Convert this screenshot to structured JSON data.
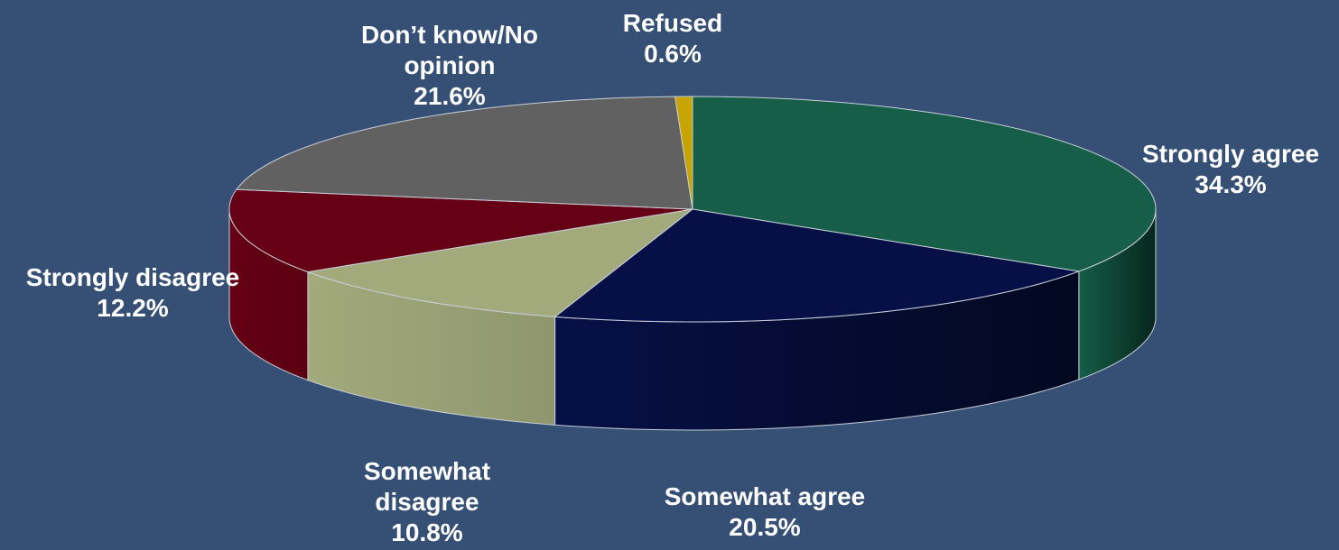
{
  "colors": {
    "background": "#354f75"
  },
  "chart_data": {
    "type": "pie",
    "style": "3d",
    "title": "",
    "slices": [
      {
        "label": "Strongly agree",
        "value": 34.3,
        "value_label": "34.3%",
        "label_lines": [
          "Strongly agree",
          "34.3%"
        ],
        "color": "#165e47",
        "side_color": "#06261c"
      },
      {
        "label": "Somewhat agree",
        "value": 20.5,
        "value_label": "20.5%",
        "label_lines": [
          "Somewhat agree",
          "20.5%"
        ],
        "color": "#061046",
        "side_color": "#030820"
      },
      {
        "label": "Somewhat disagree",
        "value": 10.8,
        "value_label": "10.8%",
        "label_lines": [
          "Somewhat",
          "disagree",
          "10.8%"
        ],
        "color": "#a2aa7c",
        "side_color": "#8f966d"
      },
      {
        "label": "Strongly disagree",
        "value": 12.2,
        "value_label": "12.2%",
        "label_lines": [
          "Strongly disagree",
          "12.2%"
        ],
        "color": "#660014",
        "side_color": "#5a0012"
      },
      {
        "label": "Don’t know/No opinion",
        "value": 21.6,
        "value_label": "21.6%",
        "label_lines": [
          "Don’t know/No",
          "opinion",
          "21.6%"
        ],
        "color": "#616161",
        "side_color": "#4a4a4a"
      },
      {
        "label": "Refused",
        "value": 0.6,
        "value_label": "0.6%",
        "label_lines": [
          "Refused",
          "0.6%"
        ],
        "color": "#c8a400",
        "side_color": "#a38600"
      }
    ]
  }
}
